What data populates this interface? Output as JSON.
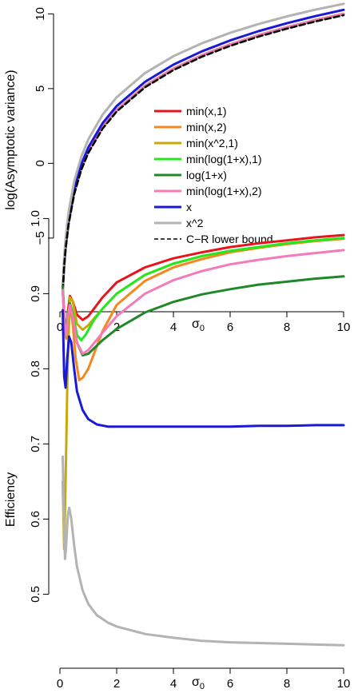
{
  "colors": {
    "min(x,1)": "#e8141c",
    "min(x,2)": "#f5871f",
    "min(x^2,1)": "#c9a80e",
    "min(log(1+x),1)": "#23e81f",
    "log(1+x)": "#21882a",
    "min(log(1+x),2)": "#f47ab9",
    "x": "#1a1ad6",
    "x^2": "#b3b3b3",
    "C-R lower bound": "#000000"
  },
  "chart_data": [
    {
      "type": "line",
      "title": "",
      "xlabel": "σ",
      "xlabel_sub": "0",
      "ylabel": "log(Asymptotic variance)",
      "xlim": [
        0,
        10
      ],
      "ylim": [
        -9.5,
        10.5
      ],
      "xticks": [
        "0",
        "2",
        "4",
        "6",
        "8",
        "10"
      ],
      "yticks": [
        "−5",
        "0",
        "5",
        "10"
      ],
      "grid": false,
      "legend_position": "center-right",
      "legend": [
        {
          "name": "min(x,1)",
          "style": "solid"
        },
        {
          "name": "min(x,2)",
          "style": "solid"
        },
        {
          "name": "min(x^2,1)",
          "style": "solid"
        },
        {
          "name": "min(log(1+x),1)",
          "style": "solid"
        },
        {
          "name": "log(1+x)",
          "style": "solid"
        },
        {
          "name": "min(log(1+x),2)",
          "style": "solid"
        },
        {
          "name": "x",
          "style": "solid"
        },
        {
          "name": "x^2",
          "style": "solid"
        },
        {
          "name": "C−R lower bound",
          "style": "dashed"
        }
      ],
      "x": [
        0.1,
        0.15,
        0.2,
        0.3,
        0.5,
        0.75,
        1,
        1.5,
        2,
        3,
        4,
        5,
        6,
        7,
        8,
        9,
        10
      ],
      "series": [
        {
          "key": "min(x,1)",
          "values": [
            -8.42,
            -6.8,
            -5.65,
            -4.03,
            -1.99,
            -0.37,
            0.78,
            2.4,
            3.55,
            5.17,
            6.32,
            7.21,
            7.94,
            8.56,
            9.09,
            9.57,
            9.99
          ]
        },
        {
          "key": "min(x,2)",
          "values": [
            -8.4,
            -6.78,
            -5.63,
            -4.01,
            -1.97,
            -0.35,
            0.8,
            2.42,
            3.57,
            5.19,
            6.34,
            7.23,
            7.96,
            8.58,
            9.11,
            9.59,
            10.01
          ]
        },
        {
          "key": "min(x^2,1)",
          "values": [
            -8.42,
            -6.8,
            -5.65,
            -4.03,
            -1.99,
            -0.37,
            0.78,
            2.4,
            3.55,
            5.17,
            6.32,
            7.21,
            7.94,
            8.56,
            9.09,
            9.57,
            9.99
          ]
        },
        {
          "key": "min(log(1+x),1)",
          "values": [
            -8.42,
            -6.8,
            -5.65,
            -4.03,
            -1.99,
            -0.37,
            0.78,
            2.4,
            3.55,
            5.17,
            6.32,
            7.21,
            7.94,
            8.56,
            9.09,
            9.57,
            9.99
          ]
        },
        {
          "key": "log(1+x)",
          "values": [
            -8.41,
            -6.79,
            -5.64,
            -4.02,
            -1.98,
            -0.36,
            0.79,
            2.41,
            3.56,
            5.18,
            6.33,
            7.22,
            7.95,
            8.57,
            9.1,
            9.58,
            10.0
          ]
        },
        {
          "key": "min(log(1+x),2)",
          "values": [
            -8.41,
            -6.79,
            -5.64,
            -4.02,
            -1.98,
            -0.36,
            0.79,
            2.41,
            3.56,
            5.18,
            6.33,
            7.22,
            7.95,
            8.57,
            9.1,
            9.58,
            10.0
          ]
        },
        {
          "key": "x",
          "values": [
            -8.3,
            -6.64,
            -5.43,
            -3.78,
            -1.72,
            -0.08,
            1.06,
            2.68,
            3.83,
            5.45,
            6.6,
            7.49,
            8.22,
            8.84,
            9.37,
            9.85,
            10.27
          ]
        },
        {
          "key": "x^2",
          "values": [
            -8.1,
            -6.3,
            -5.0,
            -3.3,
            -1.2,
            0.42,
            1.6,
            3.25,
            4.42,
            6.04,
            7.17,
            8.03,
            8.73,
            9.32,
            9.83,
            10.28,
            10.67
          ]
        },
        {
          "key": "C-R lower bound",
          "values": [
            -8.5,
            -6.88,
            -5.73,
            -4.11,
            -2.07,
            -0.45,
            0.7,
            2.32,
            3.47,
            5.09,
            6.24,
            7.13,
            7.86,
            8.48,
            9.01,
            9.49,
            9.91
          ]
        }
      ]
    },
    {
      "type": "line",
      "title": "",
      "xlabel": "σ",
      "xlabel_sub": "0",
      "ylabel": "Efficiency",
      "xlim": [
        0,
        10
      ],
      "ylim": [
        0.41,
        1.01
      ],
      "xticks": [
        "0",
        "2",
        "4",
        "6",
        "8",
        "10"
      ],
      "yticks": [
        "0.5",
        "0.6",
        "0.7",
        "0.8",
        "0.9",
        "1.0"
      ],
      "grid": false,
      "series": [
        {
          "key": "min(x,1)",
          "points": [
            [
              0.1,
              0.905
            ],
            [
              0.17,
              0.86
            ],
            [
              0.22,
              0.85
            ],
            [
              0.28,
              0.875
            ],
            [
              0.35,
              0.897
            ],
            [
              0.45,
              0.89
            ],
            [
              0.6,
              0.872
            ],
            [
              0.8,
              0.865
            ],
            [
              1,
              0.87
            ],
            [
              1.5,
              0.895
            ],
            [
              2,
              0.915
            ],
            [
              3,
              0.935
            ],
            [
              4,
              0.947
            ],
            [
              5,
              0.955
            ],
            [
              6,
              0.962
            ],
            [
              7,
              0.967
            ],
            [
              8,
              0.971
            ],
            [
              9,
              0.975
            ],
            [
              10,
              0.978
            ]
          ]
        },
        {
          "key": "min(x,2)",
          "points": [
            [
              0.1,
              0.905
            ],
            [
              0.17,
              0.855
            ],
            [
              0.22,
              0.84
            ],
            [
              0.28,
              0.868
            ],
            [
              0.35,
              0.885
            ],
            [
              0.45,
              0.86
            ],
            [
              0.55,
              0.815
            ],
            [
              0.68,
              0.785
            ],
            [
              0.8,
              0.788
            ],
            [
              1,
              0.8
            ],
            [
              1.5,
              0.85
            ],
            [
              2,
              0.885
            ],
            [
              3,
              0.917
            ],
            [
              4,
              0.935
            ],
            [
              5,
              0.946
            ],
            [
              6,
              0.955
            ],
            [
              7,
              0.961
            ],
            [
              8,
              0.966
            ],
            [
              9,
              0.97
            ],
            [
              10,
              0.973
            ]
          ]
        },
        {
          "key": "min(x^2,1)",
          "points": [
            [
              0.1,
              0.65
            ],
            [
              0.15,
              0.56
            ],
            [
              0.2,
              0.65
            ],
            [
              0.27,
              0.8
            ],
            [
              0.35,
              0.895
            ],
            [
              0.45,
              0.89
            ],
            [
              0.6,
              0.86
            ],
            [
              0.8,
              0.852
            ],
            [
              1,
              0.858
            ],
            [
              1.5,
              0.88
            ],
            [
              2,
              0.9
            ],
            [
              3,
              0.925
            ],
            [
              4,
              0.94
            ],
            [
              5,
              0.95
            ],
            [
              6,
              0.957
            ],
            [
              7,
              0.962
            ],
            [
              8,
              0.967
            ],
            [
              9,
              0.971
            ],
            [
              10,
              0.974
            ]
          ]
        },
        {
          "key": "min(log(1+x),1)",
          "points": [
            [
              0.1,
              0.905
            ],
            [
              0.17,
              0.855
            ],
            [
              0.22,
              0.845
            ],
            [
              0.28,
              0.87
            ],
            [
              0.35,
              0.887
            ],
            [
              0.45,
              0.875
            ],
            [
              0.6,
              0.845
            ],
            [
              0.75,
              0.838
            ],
            [
              0.9,
              0.845
            ],
            [
              1.2,
              0.865
            ],
            [
              1.5,
              0.88
            ],
            [
              2,
              0.9
            ],
            [
              3,
              0.925
            ],
            [
              4,
              0.94
            ],
            [
              5,
              0.95
            ],
            [
              6,
              0.957
            ],
            [
              7,
              0.962
            ],
            [
              8,
              0.967
            ],
            [
              9,
              0.971
            ],
            [
              10,
              0.974
            ]
          ]
        },
        {
          "key": "log(1+x)",
          "points": [
            [
              0.1,
              0.91
            ],
            [
              0.17,
              0.86
            ],
            [
              0.22,
              0.85
            ],
            [
              0.28,
              0.873
            ],
            [
              0.35,
              0.887
            ],
            [
              0.45,
              0.87
            ],
            [
              0.6,
              0.835
            ],
            [
              0.8,
              0.818
            ],
            [
              1,
              0.82
            ],
            [
              1.5,
              0.838
            ],
            [
              2,
              0.853
            ],
            [
              3,
              0.875
            ],
            [
              4,
              0.889
            ],
            [
              5,
              0.899
            ],
            [
              6,
              0.906
            ],
            [
              7,
              0.912
            ],
            [
              8,
              0.916
            ],
            [
              9,
              0.92
            ],
            [
              10,
              0.923
            ]
          ]
        },
        {
          "key": "min(log(1+x),2)",
          "points": [
            [
              0.1,
              0.905
            ],
            [
              0.17,
              0.855
            ],
            [
              0.22,
              0.845
            ],
            [
              0.28,
              0.87
            ],
            [
              0.35,
              0.885
            ],
            [
              0.45,
              0.87
            ],
            [
              0.6,
              0.835
            ],
            [
              0.8,
              0.82
            ],
            [
              1,
              0.825
            ],
            [
              1.5,
              0.848
            ],
            [
              2,
              0.87
            ],
            [
              3,
              0.9
            ],
            [
              4,
              0.918
            ],
            [
              5,
              0.93
            ],
            [
              6,
              0.939
            ],
            [
              7,
              0.945
            ],
            [
              8,
              0.95
            ],
            [
              9,
              0.954
            ],
            [
              10,
              0.958
            ]
          ]
        },
        {
          "key": "x",
          "points": [
            [
              0.1,
              0.878
            ],
            [
              0.15,
              0.79
            ],
            [
              0.2,
              0.775
            ],
            [
              0.25,
              0.81
            ],
            [
              0.32,
              0.843
            ],
            [
              0.4,
              0.835
            ],
            [
              0.5,
              0.8
            ],
            [
              0.6,
              0.77
            ],
            [
              0.8,
              0.745
            ],
            [
              1,
              0.733
            ],
            [
              1.3,
              0.726
            ],
            [
              1.7,
              0.723
            ],
            [
              2,
              0.723
            ],
            [
              3,
              0.723
            ],
            [
              4,
              0.723
            ],
            [
              5,
              0.723
            ],
            [
              6,
              0.723
            ],
            [
              7,
              0.724
            ],
            [
              8,
              0.724
            ],
            [
              9,
              0.725
            ],
            [
              10,
              0.725
            ]
          ]
        },
        {
          "key": "x^2",
          "points": [
            [
              0.1,
              0.683
            ],
            [
              0.14,
              0.6
            ],
            [
              0.18,
              0.547
            ],
            [
              0.22,
              0.565
            ],
            [
              0.28,
              0.605
            ],
            [
              0.33,
              0.615
            ],
            [
              0.4,
              0.6
            ],
            [
              0.5,
              0.565
            ],
            [
              0.6,
              0.537
            ],
            [
              0.8,
              0.505
            ],
            [
              1,
              0.487
            ],
            [
              1.3,
              0.472
            ],
            [
              1.7,
              0.462
            ],
            [
              2,
              0.457
            ],
            [
              3,
              0.447
            ],
            [
              4,
              0.442
            ],
            [
              5,
              0.438
            ],
            [
              6,
              0.436
            ],
            [
              7,
              0.435
            ],
            [
              8,
              0.434
            ],
            [
              9,
              0.433
            ],
            [
              10,
              0.432
            ]
          ]
        }
      ]
    }
  ]
}
